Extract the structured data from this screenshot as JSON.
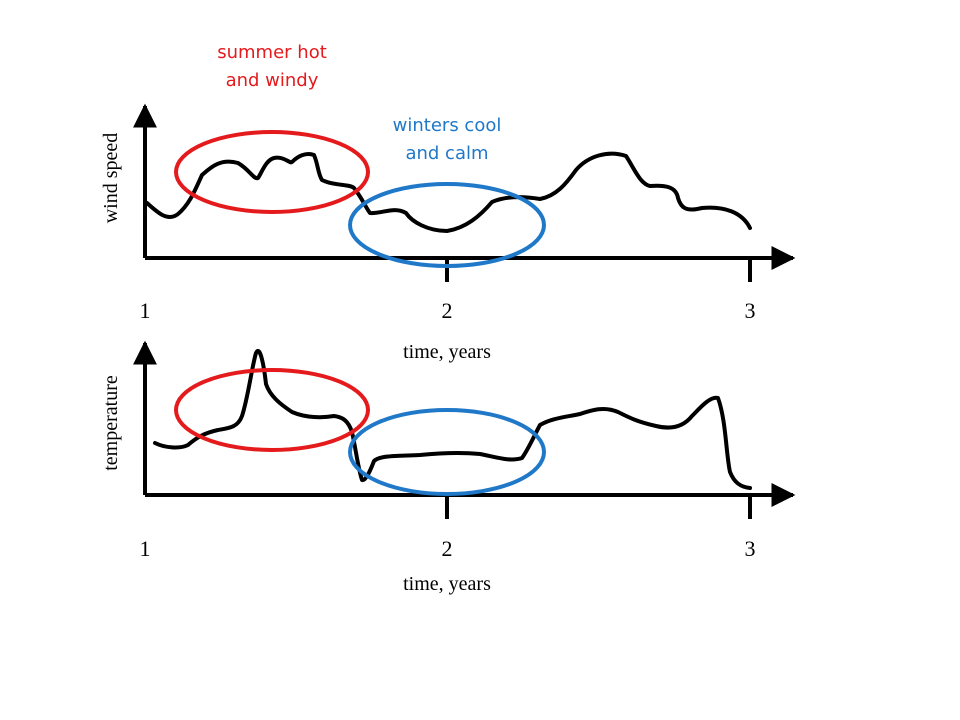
{
  "colors": {
    "summer": "#e41a1c",
    "winter": "#1f78c8",
    "line": "#000000"
  },
  "annotations": {
    "summer": [
      "summer hot",
      "and windy"
    ],
    "winter": [
      "winters cool",
      "and calm"
    ]
  },
  "top_panel": {
    "ylabel": "wind speed",
    "xlabel": "time, years",
    "ticks": [
      "1",
      "2",
      "3"
    ]
  },
  "bottom_panel": {
    "ylabel": "temperature",
    "xlabel": "time, years",
    "ticks": [
      "1",
      "2",
      "3"
    ]
  }
}
